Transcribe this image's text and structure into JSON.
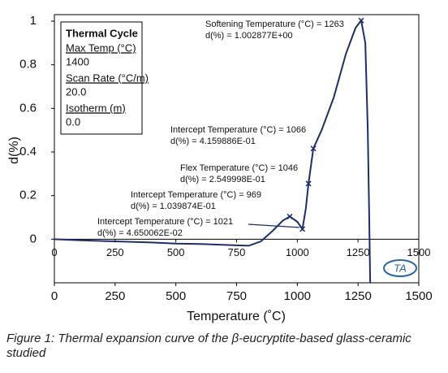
{
  "chart_data": {
    "type": "line",
    "xlabel": "Temperature (˚C)",
    "ylabel": "d(%)",
    "x": [
      0,
      100,
      250,
      400,
      500,
      600,
      750,
      800,
      850,
      900,
      940,
      969,
      1000,
      1021,
      1035,
      1046,
      1066,
      1100,
      1150,
      1200,
      1240,
      1263,
      1280,
      1290,
      1296,
      1300
    ],
    "series": [
      {
        "color": "#1f2d6b",
        "values": [
          0,
          -0.005,
          -0.01,
          -0.015,
          -0.02,
          -0.022,
          -0.028,
          -0.03,
          -0.01,
          0.04,
          0.085,
          0.104,
          0.08,
          0.0465,
          0.14,
          0.255,
          0.416,
          0.5,
          0.65,
          0.85,
          0.97,
          1.0029,
          0.9,
          0.5,
          0.1,
          -0.2
        ]
      }
    ],
    "xlim": [
      0,
      1500
    ],
    "ylim": [
      -0.2,
      1.03
    ],
    "xticks": [
      0,
      250,
      500,
      750,
      1000,
      1250,
      1500
    ],
    "yticks": [
      0,
      0.2,
      0.4,
      0.6,
      0.8,
      1
    ],
    "grid": false,
    "annotations": [
      {
        "x": 1263,
        "y": 1.002877,
        "label": [
          "Softening Temperature (°C) = 1263",
          "d(%) = 1.002877E+00"
        ]
      },
      {
        "x": 1066,
        "y": 0.4159886,
        "label": [
          "Intercept Temperature (°C) = 1066",
          "d(%) = 4.159886E-01"
        ]
      },
      {
        "x": 1046,
        "y": 0.2549998,
        "label": [
          "Flex Temperature (°C) = 1046",
          "d(%) = 2.549998E-01"
        ]
      },
      {
        "x": 969,
        "y": 0.1039874,
        "label": [
          "Intercept Temperature (°C) = 969",
          "d(%) = 1.039874E-01"
        ]
      },
      {
        "x": 1021,
        "y": 0.04650062,
        "label": [
          "Intercept Temperature (°C) = 1021",
          "d(%) = 4.650062E-02"
        ]
      }
    ]
  },
  "info_box": {
    "title": "Thermal Cycle",
    "items": [
      {
        "label": "Max Temp (°C)",
        "value": "1400"
      },
      {
        "label": "Scan Rate (°C/m)",
        "value": "20.0"
      },
      {
        "label": "Isotherm (m)",
        "value": "0.0"
      }
    ]
  },
  "logo": "TA",
  "caption": "Figure 1: Thermal expansion curve of the β-eucryptite-based glass-ceramic studied"
}
